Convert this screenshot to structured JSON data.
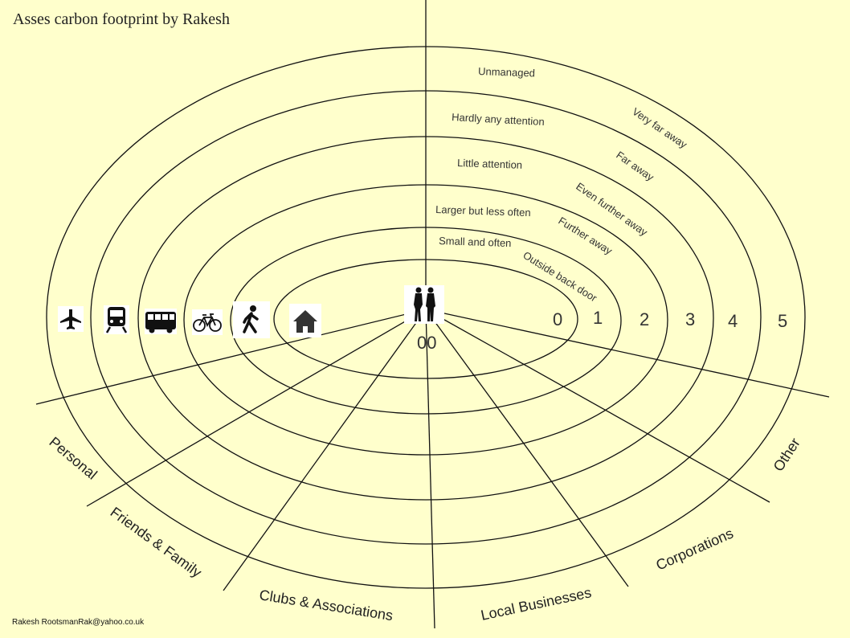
{
  "rings": {
    "attention": [
      "Small and often",
      "Larger but less often",
      "Little attention",
      "Hardly any attention",
      "Unmanaged"
    ],
    "distance": [
      "Outside back door",
      "Further away",
      "Even further away",
      "Far away",
      "Very far away"
    ],
    "numbers": [
      "0",
      "1",
      "2",
      "3",
      "4",
      "5"
    ],
    "center_label": "00"
  },
  "categories": [
    "Personal",
    "Friends & Family",
    "Clubs & Associations",
    "Local Businesses",
    "Corporations",
    "Other"
  ],
  "icons": [
    "airplane-icon",
    "train-icon",
    "bus-icon",
    "bicycle-icon",
    "pedestrian-icon",
    "house-icon",
    "people-icon"
  ],
  "title": "Asses carbon footprint by Rakesh",
  "credit": "Rakesh RootsmanRak@yahoo.co.uk",
  "colors": {
    "background": "#ffffcc",
    "lines": "#111111"
  }
}
